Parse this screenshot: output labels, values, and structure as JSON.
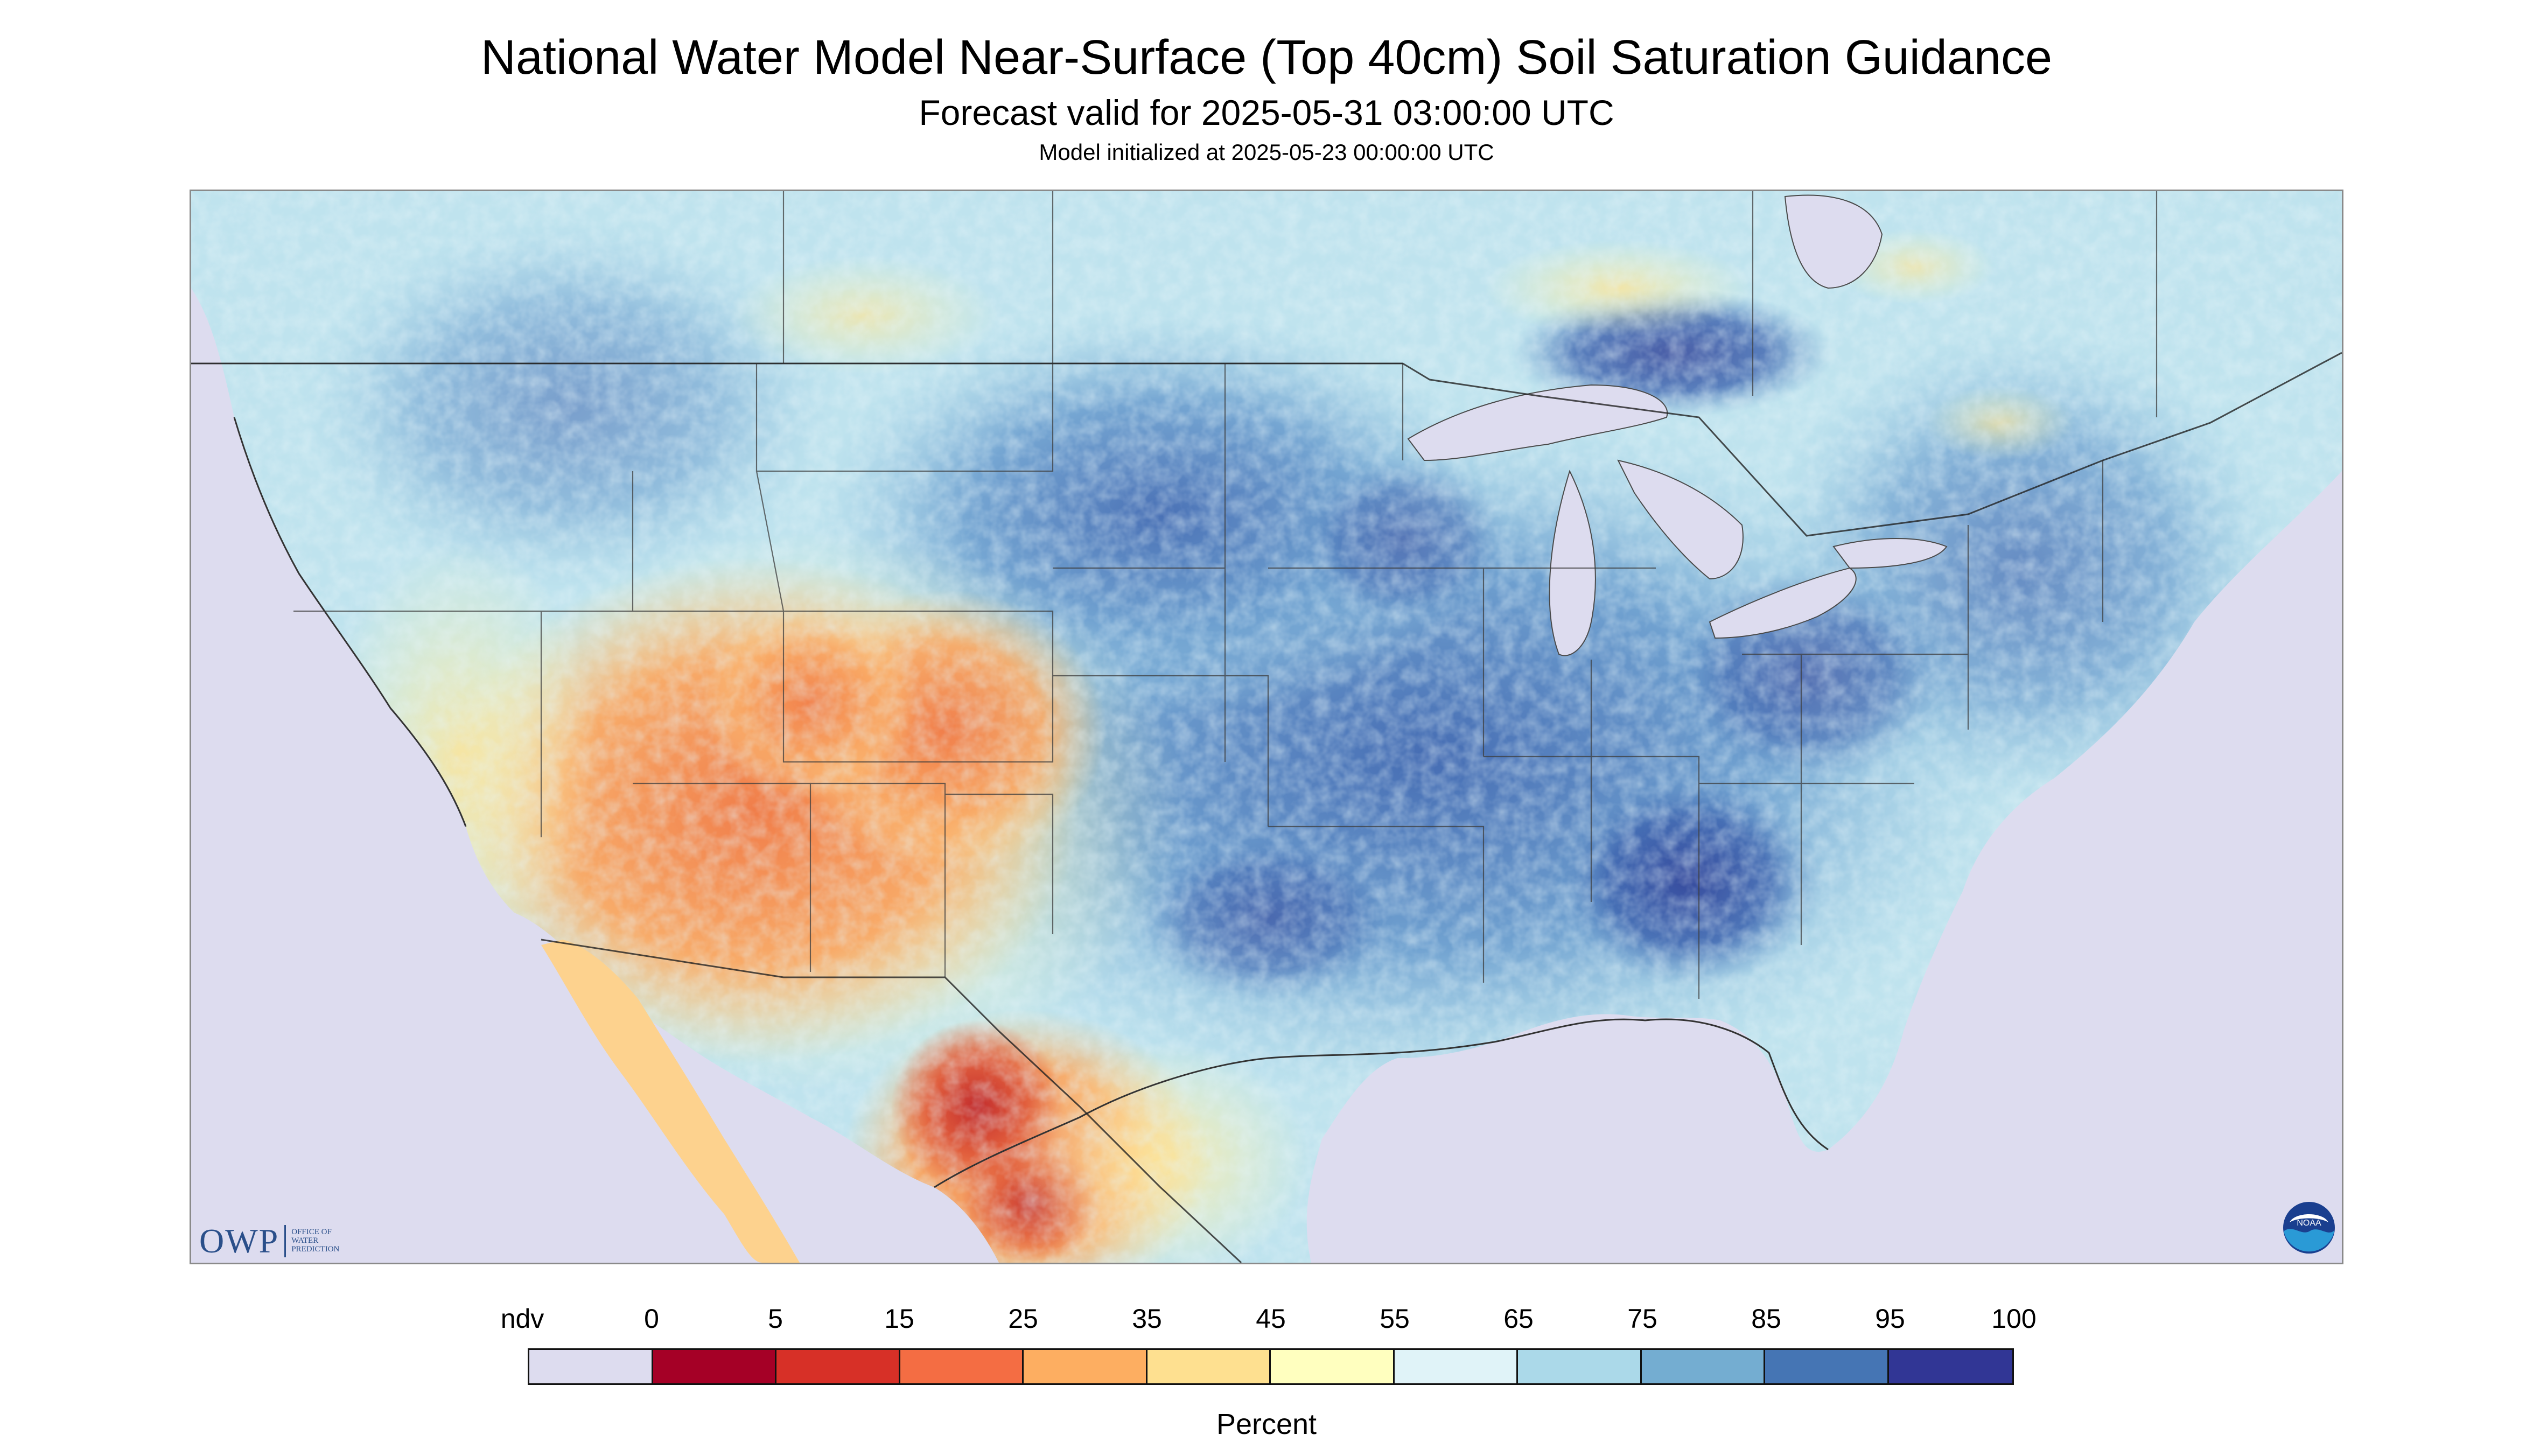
{
  "header": {
    "title": "National Water Model Near-Surface (Top 40cm) Soil Saturation Guidance",
    "subtitle": "Forecast valid for 2025-05-31 03:00:00 UTC",
    "init": "Model initialized at 2025-05-23 00:00:00 UTC"
  },
  "map": {
    "region": "CONUS",
    "ndv_color": "#dddcef",
    "water_color": "#dddcef"
  },
  "logos": {
    "owp_mark": "OWP",
    "owp_lines": [
      "Office of",
      "Water",
      "Prediction"
    ],
    "noaa_text": "NOAA"
  },
  "legend": {
    "unit": "Percent",
    "labels": [
      "ndv",
      "0",
      "5",
      "15",
      "25",
      "35",
      "45",
      "55",
      "65",
      "75",
      "85",
      "95",
      "100"
    ],
    "colors": [
      "#dddcef",
      "#a50026",
      "#d73027",
      "#f46d43",
      "#fdae61",
      "#fee090",
      "#ffffbf",
      "#e0f3f8",
      "#abd9e9",
      "#74add1",
      "#4575b4",
      "#313695"
    ]
  }
}
